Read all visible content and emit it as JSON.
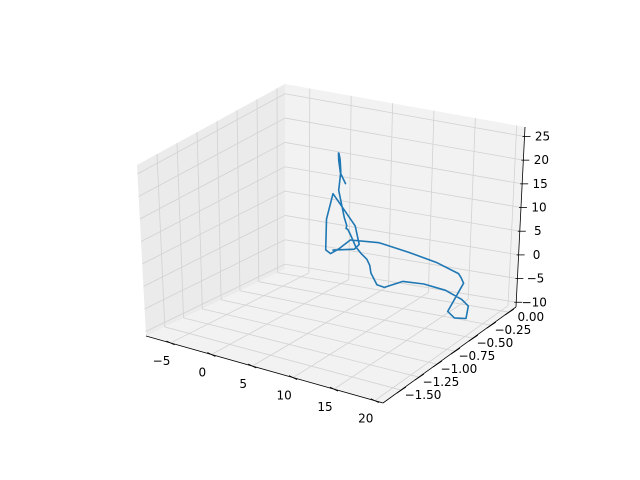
{
  "chart_data": {
    "type": "line",
    "projection": "3d",
    "title": "",
    "xlabel": "",
    "ylabel": "",
    "zlabel": "",
    "grid": true,
    "xlim": [
      -8,
      21
    ],
    "ylim": [
      -1.75,
      0.1
    ],
    "zlim": [
      -11,
      27
    ],
    "x_ticks": [
      -5,
      0,
      5,
      10,
      15,
      20
    ],
    "x_tick_labels": [
      "−5",
      "0",
      "5",
      "10",
      "15",
      "20"
    ],
    "y_ticks": [
      0.0,
      -0.25,
      -0.5,
      -0.75,
      -1.0,
      -1.25,
      -1.5
    ],
    "y_tick_labels": [
      "0.00",
      "−0.25",
      "−0.50",
      "−0.75",
      "−1.00",
      "−1.25",
      "−1.50"
    ],
    "z_ticks": [
      25,
      20,
      15,
      10,
      5,
      0,
      -5,
      -10
    ],
    "z_tick_labels": [
      "25",
      "20",
      "15",
      "10",
      "5",
      "0",
      "−5",
      "−10"
    ],
    "colors": {
      "line": "#1f77b4",
      "pane": "#f2f2f2",
      "pane_side": "#ebebeb",
      "grid": "#d2d2d2",
      "axis": "#000000"
    },
    "series": [
      {
        "points": [
          [
            -0.1,
            -0.12,
            -1.4
          ],
          [
            2.6,
            -0.13,
            0.2
          ],
          [
            3.2,
            -0.13,
            1.5
          ],
          [
            2.7,
            -0.13,
            5.2
          ],
          [
            0.8,
            -0.13,
            9.1
          ],
          [
            -0.1,
            -0.12,
            10.6
          ],
          [
            -0.9,
            -0.12,
            4.8
          ],
          [
            -1.0,
            -0.12,
            -1.8
          ],
          [
            -0.4,
            -0.12,
            -2.3
          ],
          [
            0.6,
            -0.12,
            -0.8
          ],
          [
            2.1,
            -0.13,
            1.9
          ],
          [
            5.8,
            -0.15,
            3.3
          ],
          [
            9.6,
            -0.17,
            3.3
          ],
          [
            13.2,
            -0.18,
            2.9
          ],
          [
            15.9,
            -0.19,
            2.0
          ],
          [
            16.2,
            -0.19,
            1.3
          ],
          [
            16.7,
            -0.21,
            0.5
          ],
          [
            15.4,
            -0.28,
            -5.6
          ],
          [
            16.5,
            -0.31,
            -6.2
          ],
          [
            18.1,
            -0.33,
            -5.4
          ],
          [
            19.3,
            -0.43,
            -1.4
          ],
          [
            19.6,
            -0.55,
            1.1
          ],
          [
            19.0,
            -0.7,
            3.9
          ],
          [
            17.9,
            -0.87,
            6.0
          ],
          [
            17.0,
            -1.05,
            7.5
          ],
          [
            17.2,
            -1.32,
            8.4
          ],
          [
            17.4,
            -1.44,
            10.0
          ],
          [
            17.4,
            -1.52,
            13.1
          ],
          [
            18.0,
            -1.6,
            15.6
          ],
          [
            18.2,
            -1.66,
            17.5
          ],
          [
            17.7,
            -1.68,
            18.6
          ],
          [
            17.4,
            -1.72,
            20.2
          ],
          [
            16.6,
            -1.7,
            22.1
          ],
          [
            15.4,
            -1.61,
            22.1
          ],
          [
            13.9,
            -1.47,
            20.5
          ],
          [
            12.8,
            -1.34,
            19.5
          ],
          [
            11.3,
            -1.21,
            19.5
          ],
          [
            7.4,
            -0.86,
            20.7
          ],
          [
            4.8,
            -0.55,
            21.0
          ],
          [
            2.7,
            -0.33,
            20.9
          ],
          [
            1.0,
            -0.16,
            20.0
          ],
          [
            -1.0,
            0.05,
            17.5
          ],
          [
            -1.7,
            0.13,
            15.0
          ],
          [
            -1.5,
            0.13,
            12.4
          ],
          [
            -0.6,
            0.1,
            10.8
          ]
        ]
      }
    ]
  }
}
